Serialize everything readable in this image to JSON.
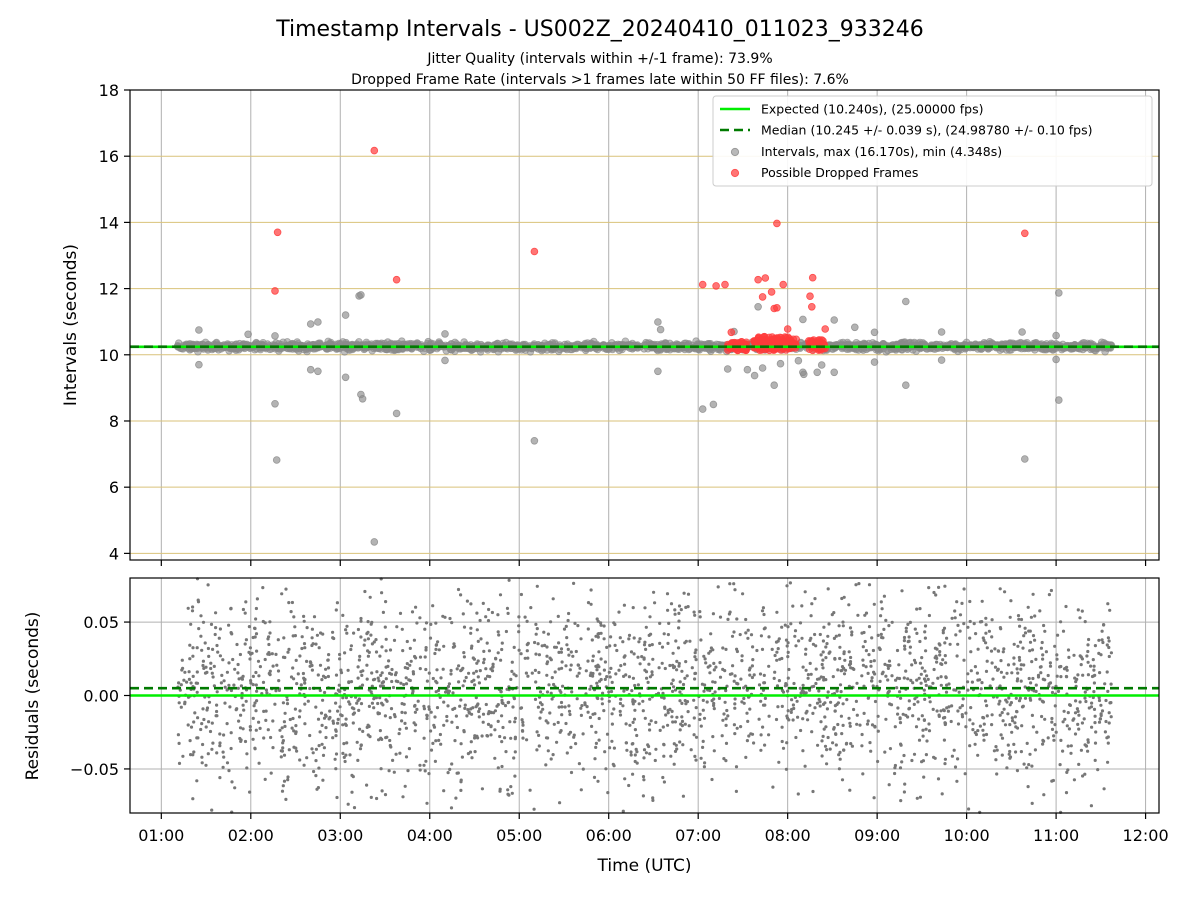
{
  "chart_data": [
    {
      "type": "scatter",
      "title": "Timestamp Intervals - US002Z_20240410_011023_933246",
      "subtitle_lines": [
        "Jitter Quality (intervals within +/-1 frame): 73.9%",
        "Dropped Frame Rate (intervals >1 frames late within 50 FF files): 7.6%"
      ],
      "xlabel": "",
      "ylabel": "Intervals (seconds)",
      "x_unit": "hours UTC",
      "xlim": [
        0.65,
        12.15
      ],
      "ylim": [
        3.8,
        18
      ],
      "y_ticks": [
        4,
        6,
        8,
        10,
        12,
        14,
        16,
        18
      ],
      "grid": "vertical gray, horizontal goldenrod",
      "legend_position": "top-right",
      "legend": [
        {
          "label": "Expected (10.240s), (25.00000 fps)",
          "style": "solid-line",
          "color": "#00ee00"
        },
        {
          "label": "Median (10.245 +/- 0.039 s), (24.98780 +/- 0.10 fps)",
          "style": "dashed-line",
          "color": "#007a00"
        },
        {
          "label": "Intervals, max (16.170s), min (4.348s)",
          "style": "dot",
          "color": "#8a8a8a"
        },
        {
          "label": "Possible Dropped Frames",
          "style": "dot",
          "color": "#ff3b3b"
        }
      ],
      "expected_y": 10.24,
      "median_y": 10.245,
      "series": [
        {
          "name": "Intervals, max (16.170s), min (4.348s)",
          "color": "#8a8a8a",
          "points": [
            [
              2.29,
              6.82
            ],
            [
              2.27,
              8.52
            ],
            [
              2.27,
              10.57
            ],
            [
              2.67,
              9.55
            ],
            [
              2.75,
              9.5
            ],
            [
              2.67,
              10.93
            ],
            [
              2.75,
              10.99
            ],
            [
              3.06,
              9.32
            ],
            [
              3.06,
              11.2
            ],
            [
              3.21,
              11.78
            ],
            [
              3.23,
              11.81
            ],
            [
              3.23,
              8.8
            ],
            [
              3.25,
              8.67
            ],
            [
              3.38,
              4.348
            ],
            [
              3.63,
              8.23
            ],
            [
              1.42,
              9.7
            ],
            [
              1.42,
              10.75
            ],
            [
              1.97,
              10.62
            ],
            [
              4.17,
              10.63
            ],
            [
              4.17,
              9.83
            ],
            [
              5.17,
              7.4
            ],
            [
              6.55,
              9.5
            ],
            [
              6.55,
              10.99
            ],
            [
              6.58,
              10.76
            ],
            [
              7.05,
              8.36
            ],
            [
              7.17,
              8.5
            ],
            [
              7.33,
              9.57
            ],
            [
              7.4,
              10.7
            ],
            [
              7.55,
              9.55
            ],
            [
              7.63,
              9.37
            ],
            [
              7.67,
              11.45
            ],
            [
              7.72,
              9.6
            ],
            [
              7.85,
              9.08
            ],
            [
              7.92,
              9.73
            ],
            [
              8.12,
              9.82
            ],
            [
              8.17,
              9.47
            ],
            [
              8.18,
              9.41
            ],
            [
              8.17,
              11.07
            ],
            [
              8.33,
              9.47
            ],
            [
              8.38,
              9.69
            ],
            [
              8.52,
              9.47
            ],
            [
              8.52,
              11.05
            ],
            [
              8.75,
              10.83
            ],
            [
              8.97,
              9.78
            ],
            [
              8.97,
              10.68
            ],
            [
              9.32,
              9.08
            ],
            [
              9.32,
              11.61
            ],
            [
              9.72,
              9.84
            ],
            [
              9.72,
              10.69
            ],
            [
              10.62,
              10.69
            ],
            [
              10.65,
              6.85
            ],
            [
              11.0,
              10.58
            ],
            [
              11.0,
              9.86
            ],
            [
              11.03,
              8.63
            ],
            [
              11.03,
              11.87
            ]
          ],
          "band": {
            "x_range": [
              1.18,
              11.62
            ],
            "y_center": 10.25,
            "y_spread": 0.16
          }
        },
        {
          "name": "Possible Dropped Frames",
          "color": "#ff3b3b",
          "points": [
            [
              2.27,
              11.93
            ],
            [
              2.3,
              13.7
            ],
            [
              3.38,
              16.17
            ],
            [
              3.63,
              12.27
            ],
            [
              5.17,
              13.12
            ],
            [
              7.05,
              12.12
            ],
            [
              7.2,
              12.08
            ],
            [
              7.3,
              12.12
            ],
            [
              7.37,
              10.68
            ],
            [
              7.67,
              12.27
            ],
            [
              7.75,
              12.32
            ],
            [
              7.85,
              11.4
            ],
            [
              7.88,
              13.97
            ],
            [
              7.88,
              11.42
            ],
            [
              7.72,
              11.75
            ],
            [
              7.82,
              11.9
            ],
            [
              7.95,
              12.12
            ],
            [
              8.0,
              10.78
            ],
            [
              8.25,
              11.77
            ],
            [
              8.27,
              11.45
            ],
            [
              8.28,
              12.33
            ],
            [
              8.42,
              10.78
            ],
            [
              10.65,
              13.67
            ]
          ],
          "clusters": [
            {
              "x_range": [
                7.33,
                7.55
              ],
              "y_range": [
                10.13,
                10.4
              ]
            },
            {
              "x_range": [
                7.62,
                8.1
              ],
              "y_range": [
                10.13,
                10.55
              ]
            },
            {
              "x_range": [
                8.22,
                8.42
              ],
              "y_range": [
                10.13,
                10.45
              ]
            }
          ]
        }
      ]
    },
    {
      "type": "scatter",
      "title": "",
      "xlabel": "Time (UTC)",
      "ylabel": "Residuals (seconds)",
      "xlim": [
        0.65,
        12.15
      ],
      "ylim": [
        -0.08,
        0.08
      ],
      "y_ticks": [
        -0.05,
        0.0,
        0.05
      ],
      "y_tick_labels": [
        "−0.05",
        "0.00",
        "0.05"
      ],
      "x_ticks": [
        1,
        2,
        3,
        4,
        5,
        6,
        7,
        8,
        9,
        10,
        11,
        12
      ],
      "x_tick_labels": [
        "01:00",
        "02:00",
        "03:00",
        "04:00",
        "05:00",
        "06:00",
        "07:00",
        "08:00",
        "09:00",
        "10:00",
        "11:00",
        "12:00"
      ],
      "grid": "both, gray",
      "expected_y": 0.0,
      "median_y": 0.005,
      "series": [
        {
          "name": "",
          "color": "#777777",
          "x_range": [
            1.18,
            11.62
          ],
          "y_mean": 0.005,
          "y_std": 0.035,
          "count": 2600
        }
      ]
    }
  ]
}
